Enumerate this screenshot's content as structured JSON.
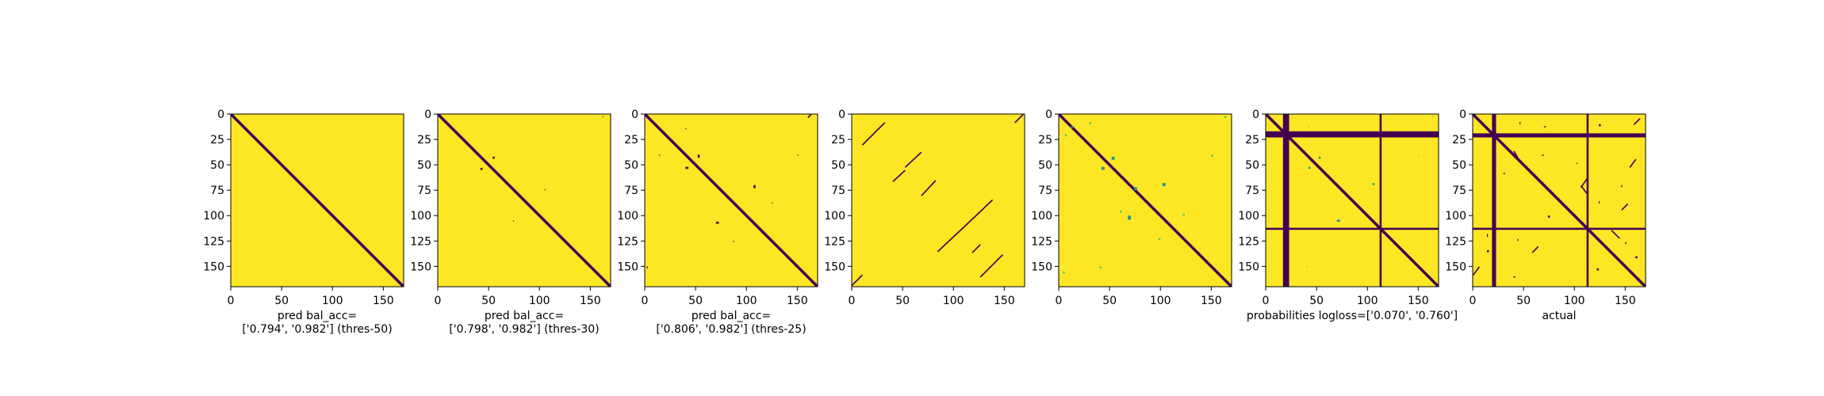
{
  "figure": {
    "background": "#ffffff",
    "colormap": {
      "low": "#440154",
      "mid": "#21918c",
      "mid_light": "#5ec962",
      "high": "#fde725"
    }
  },
  "chart_data": [
    {
      "type": "heatmap",
      "title": "",
      "xlabel_lines": [
        "pred bal_acc=",
        "['0.794', '0.982'] (thres-50)"
      ],
      "ylabel": "",
      "matrix_size": 170,
      "xlim": [
        0,
        170
      ],
      "ylim": [
        170,
        0
      ],
      "xticks": [
        0,
        50,
        100,
        150
      ],
      "yticks": [
        0,
        25,
        50,
        75,
        100,
        125,
        150
      ],
      "main_diagonal": true,
      "diagonal_segments": [],
      "full_lines": [],
      "spots": []
    },
    {
      "type": "heatmap",
      "title": "",
      "xlabel_lines": [
        "pred bal_acc=",
        "['0.798', '0.982'] (thres-30)"
      ],
      "ylabel": "",
      "matrix_size": 170,
      "xlim": [
        0,
        170
      ],
      "ylim": [
        170,
        0
      ],
      "xticks": [
        0,
        50,
        100,
        150
      ],
      "yticks": [
        0,
        25,
        50,
        75,
        100,
        125,
        150
      ],
      "main_diagonal": true,
      "diagonal_segments": [],
      "full_lines": [],
      "spots": [
        {
          "row": 42,
          "col": 54,
          "w": 2,
          "h": 2,
          "value": 0
        },
        {
          "row": 53,
          "col": 42,
          "w": 2,
          "h": 2,
          "value": 0
        },
        {
          "row": 74,
          "col": 105,
          "w": 1,
          "h": 1,
          "value": 0
        },
        {
          "row": 105,
          "col": 74,
          "w": 1,
          "h": 1,
          "value": 0
        },
        {
          "row": 2,
          "col": 162,
          "w": 1,
          "h": 1,
          "value": 0
        }
      ]
    },
    {
      "type": "heatmap",
      "title": "",
      "xlabel_lines": [
        "pred bal_acc=",
        "['0.806', '0.982'] (thres-25)"
      ],
      "ylabel": "",
      "matrix_size": 170,
      "xlim": [
        0,
        170
      ],
      "ylim": [
        170,
        0
      ],
      "xticks": [
        0,
        50,
        100,
        150
      ],
      "yticks": [
        0,
        25,
        50,
        75,
        100,
        125,
        150
      ],
      "main_diagonal": true,
      "diagonal_segments": [
        {
          "r0": 0,
          "c0": 163,
          "r1": 3,
          "c1": 160
        }
      ],
      "full_lines": [],
      "spots": [
        {
          "row": 14,
          "col": 40,
          "w": 1,
          "h": 1,
          "value": 0
        },
        {
          "row": 40,
          "col": 14,
          "w": 1,
          "h": 1,
          "value": 0
        },
        {
          "row": 40,
          "col": 52,
          "w": 2,
          "h": 3,
          "value": 0
        },
        {
          "row": 52,
          "col": 40,
          "w": 3,
          "h": 2,
          "value": 0
        },
        {
          "row": 70,
          "col": 107,
          "w": 2,
          "h": 3,
          "value": 0
        },
        {
          "row": 106,
          "col": 70,
          "w": 3,
          "h": 2,
          "value": 0
        },
        {
          "row": 40,
          "col": 150,
          "w": 1,
          "h": 1,
          "value": 0
        },
        {
          "row": 150,
          "col": 2,
          "w": 1,
          "h": 2,
          "value": 0
        },
        {
          "row": 87,
          "col": 125,
          "w": 1,
          "h": 1,
          "value": 0
        },
        {
          "row": 125,
          "col": 87,
          "w": 1,
          "h": 1,
          "value": 0
        }
      ]
    },
    {
      "type": "heatmap",
      "title": "",
      "xlabel_lines": [],
      "ylabel": "",
      "matrix_size": 170,
      "xlim": [
        0,
        170
      ],
      "ylim": [
        170,
        0
      ],
      "xticks": [
        0,
        50,
        100,
        150
      ],
      "yticks": [
        0,
        25,
        50,
        75,
        100,
        125,
        150
      ],
      "main_diagonal": false,
      "diagonal_segments": [
        {
          "r0": 8,
          "c0": 32,
          "r1": 30,
          "c1": 10
        },
        {
          "r0": 37,
          "c0": 68,
          "r1": 52,
          "c1": 52
        },
        {
          "r0": 55,
          "c0": 52,
          "r1": 66,
          "c1": 40
        },
        {
          "r0": 65,
          "c0": 82,
          "r1": 80,
          "c1": 68
        },
        {
          "r0": 84,
          "c0": 138,
          "r1": 105,
          "c1": 116
        },
        {
          "r0": 105,
          "c0": 116,
          "r1": 135,
          "c1": 84
        },
        {
          "r0": 128,
          "c0": 126,
          "r1": 136,
          "c1": 118
        },
        {
          "r0": 138,
          "c0": 148,
          "r1": 160,
          "c1": 126
        },
        {
          "r0": 0,
          "c0": 168,
          "r1": 8,
          "c1": 160
        },
        {
          "r0": 158,
          "c0": 10,
          "r1": 168,
          "c1": 0
        }
      ],
      "full_lines": [],
      "spots": []
    },
    {
      "type": "heatmap",
      "title": "",
      "xlabel_lines": [],
      "ylabel": "",
      "matrix_size": 170,
      "xlim": [
        0,
        170
      ],
      "ylim": [
        170,
        0
      ],
      "xticks": [
        0,
        50,
        100,
        150
      ],
      "yticks": [
        0,
        25,
        50,
        75,
        100,
        125,
        150
      ],
      "main_diagonal": true,
      "diagonal_segments": [],
      "full_lines": [],
      "spots": [
        {
          "row": 8,
          "col": 30,
          "w": 2,
          "h": 2,
          "value": 0.7
        },
        {
          "row": 12,
          "col": 12,
          "w": 2,
          "h": 2,
          "value": 0.6
        },
        {
          "row": 20,
          "col": 6,
          "w": 2,
          "h": 2,
          "value": 0.8
        },
        {
          "row": 42,
          "col": 52,
          "w": 3,
          "h": 3,
          "value": 0.5
        },
        {
          "row": 52,
          "col": 42,
          "w": 3,
          "h": 3,
          "value": 0.5
        },
        {
          "row": 68,
          "col": 102,
          "w": 3,
          "h": 3,
          "value": 0.55
        },
        {
          "row": 72,
          "col": 74,
          "w": 3,
          "h": 3,
          "value": 0.6
        },
        {
          "row": 100,
          "col": 68,
          "w": 3,
          "h": 4,
          "value": 0.55
        },
        {
          "row": 95,
          "col": 60,
          "w": 2,
          "h": 2,
          "value": 0.7
        },
        {
          "row": 98,
          "col": 122,
          "w": 2,
          "h": 2,
          "value": 0.75
        },
        {
          "row": 122,
          "col": 98,
          "w": 2,
          "h": 2,
          "value": 0.75
        },
        {
          "row": 40,
          "col": 150,
          "w": 2,
          "h": 2,
          "value": 0.7
        },
        {
          "row": 150,
          "col": 40,
          "w": 2,
          "h": 2,
          "value": 0.7
        },
        {
          "row": 155,
          "col": 4,
          "w": 2,
          "h": 2,
          "value": 0.8
        },
        {
          "row": 2,
          "col": 163,
          "w": 2,
          "h": 2,
          "value": 0.7
        }
      ]
    },
    {
      "type": "heatmap",
      "title": "",
      "xlabel_lines": [
        "probabilities logloss=['0.070', '0.760']"
      ],
      "ylabel": "",
      "matrix_size": 170,
      "xlim": [
        0,
        170
      ],
      "ylim": [
        170,
        0
      ],
      "xticks": [
        0,
        50,
        100,
        150
      ],
      "yticks": [
        0,
        25,
        50,
        75,
        100,
        125,
        150
      ],
      "main_diagonal": true,
      "diagonal_segments": [],
      "full_lines": [
        {
          "orient": "h",
          "start": 17,
          "width": 6
        },
        {
          "orient": "v",
          "start": 17,
          "width": 6
        },
        {
          "orient": "h",
          "start": 112,
          "width": 2
        },
        {
          "orient": "v",
          "start": 112,
          "width": 2
        }
      ],
      "spots": [
        {
          "row": 42,
          "col": 52,
          "w": 2,
          "h": 2,
          "value": 0.55
        },
        {
          "row": 52,
          "col": 42,
          "w": 2,
          "h": 2,
          "value": 0.55
        },
        {
          "row": 68,
          "col": 105,
          "w": 2,
          "h": 2,
          "value": 0.5
        },
        {
          "row": 104,
          "col": 70,
          "w": 3,
          "h": 2,
          "value": 0.5
        },
        {
          "row": 12,
          "col": 42,
          "w": 1,
          "h": 1,
          "value": 0.75
        },
        {
          "row": 40,
          "col": 150,
          "w": 1,
          "h": 1,
          "value": 0.75
        },
        {
          "row": 150,
          "col": 40,
          "w": 1,
          "h": 1,
          "value": 0.75
        },
        {
          "row": 2,
          "col": 164,
          "w": 1,
          "h": 1,
          "value": 0.75
        }
      ]
    },
    {
      "type": "heatmap",
      "title": "",
      "xlabel_lines": [
        "actual"
      ],
      "ylabel": "",
      "matrix_size": 170,
      "xlim": [
        0,
        170
      ],
      "ylim": [
        170,
        0
      ],
      "xticks": [
        0,
        50,
        100,
        150
      ],
      "yticks": [
        0,
        25,
        50,
        75,
        100,
        125,
        150
      ],
      "main_diagonal": true,
      "diagonal_segments": [
        {
          "r0": 4,
          "c0": 164,
          "r1": 10,
          "c1": 158
        },
        {
          "r0": 63,
          "c0": 112,
          "r1": 72,
          "c1": 106
        },
        {
          "r0": 70,
          "c0": 106,
          "r1": 78,
          "c1": 112
        },
        {
          "r0": 150,
          "c0": 6,
          "r1": 158,
          "c1": 0
        },
        {
          "r0": 36,
          "c0": 40,
          "r1": 46,
          "c1": 46
        },
        {
          "r0": 44,
          "c0": 160,
          "r1": 52,
          "c1": 154
        },
        {
          "r0": 130,
          "c0": 64,
          "r1": 136,
          "c1": 58
        },
        {
          "r0": 114,
          "c0": 136,
          "r1": 122,
          "c1": 144
        },
        {
          "r0": 88,
          "c0": 152,
          "r1": 94,
          "c1": 146
        }
      ],
      "full_lines": [
        {
          "orient": "h",
          "start": 19,
          "width": 4
        },
        {
          "orient": "v",
          "start": 19,
          "width": 4
        },
        {
          "orient": "h",
          "start": 112,
          "width": 2
        },
        {
          "orient": "v",
          "start": 112,
          "width": 2
        }
      ],
      "spots": [
        {
          "row": 8,
          "col": 46,
          "w": 1,
          "h": 2,
          "value": 0
        },
        {
          "row": 12,
          "col": 70,
          "w": 2,
          "h": 1,
          "value": 0
        },
        {
          "row": 10,
          "col": 124,
          "w": 2,
          "h": 2,
          "value": 0
        },
        {
          "row": 40,
          "col": 68,
          "w": 2,
          "h": 1,
          "value": 0
        },
        {
          "row": 48,
          "col": 102,
          "w": 1,
          "h": 1,
          "value": 0
        },
        {
          "row": 70,
          "col": 146,
          "w": 1,
          "h": 2,
          "value": 0
        },
        {
          "row": 86,
          "col": 124,
          "w": 1,
          "h": 2,
          "value": 0
        },
        {
          "row": 100,
          "col": 74,
          "w": 2,
          "h": 2,
          "value": 0
        },
        {
          "row": 118,
          "col": 14,
          "w": 1,
          "h": 3,
          "value": 0
        },
        {
          "row": 123,
          "col": 44,
          "w": 1,
          "h": 2,
          "value": 0
        },
        {
          "row": 134,
          "col": 14,
          "w": 2,
          "h": 2,
          "value": 0
        },
        {
          "row": 140,
          "col": 160,
          "w": 2,
          "h": 2,
          "value": 0
        },
        {
          "row": 152,
          "col": 122,
          "w": 2,
          "h": 2,
          "value": 0
        },
        {
          "row": 160,
          "col": 40,
          "w": 2,
          "h": 1,
          "value": 0
        },
        {
          "row": 126,
          "col": 150,
          "w": 1,
          "h": 2,
          "value": 0
        },
        {
          "row": 58,
          "col": 30,
          "w": 2,
          "h": 1,
          "value": 0
        }
      ]
    }
  ]
}
